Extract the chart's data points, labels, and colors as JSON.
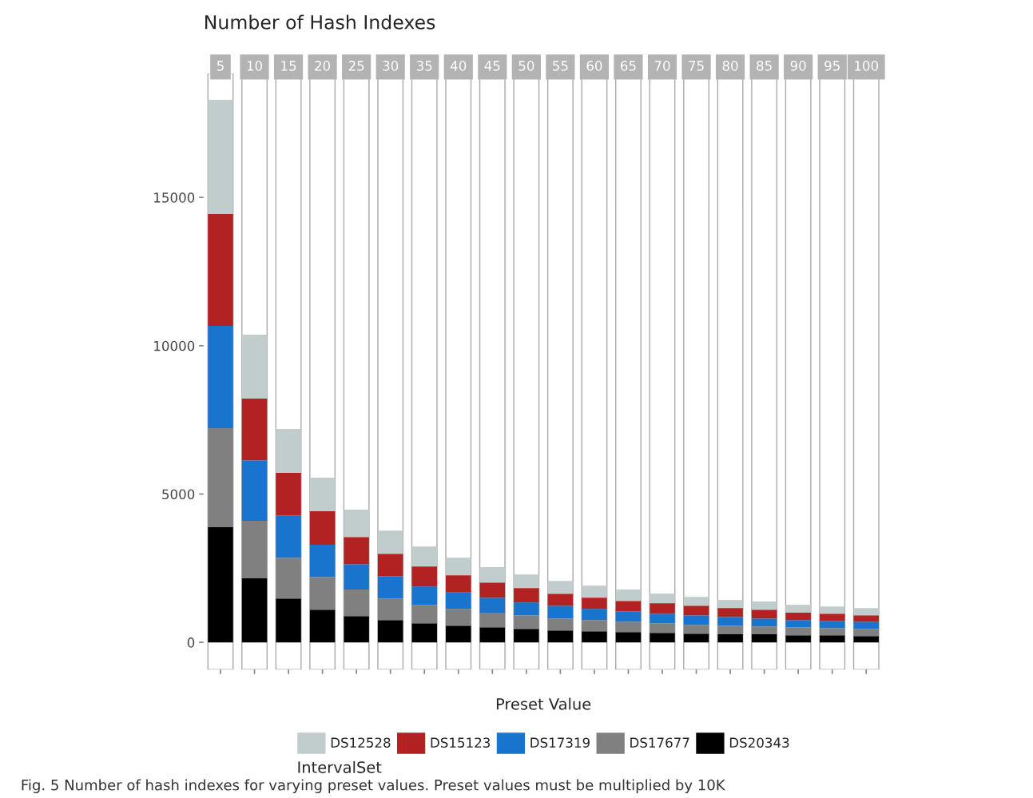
{
  "chart_data": {
    "type": "bar",
    "stacked": true,
    "title": "Number of Hash Indexes",
    "xlabel": "Preset Value",
    "legend_title": "IntervalSet",
    "legend": "bottom",
    "grid": false,
    "categories": [
      "5",
      "10",
      "15",
      "20",
      "25",
      "30",
      "35",
      "40",
      "45",
      "50",
      "55",
      "60",
      "65",
      "70",
      "75",
      "80",
      "85",
      "90",
      "95",
      "100"
    ],
    "series": [
      {
        "name": "DS20343",
        "color": "#000000",
        "values": [
          3880,
          2155,
          1481,
          1104,
          889,
          754,
          646,
          566,
          512,
          458,
          404,
          377,
          350,
          323,
          296,
          270,
          270,
          242,
          242,
          215
        ]
      },
      {
        "name": "DS17677",
        "color": "#808080",
        "values": [
          3340,
          1940,
          1374,
          1104,
          889,
          727,
          620,
          565,
          485,
          458,
          404,
          377,
          350,
          323,
          296,
          296,
          269,
          270,
          243,
          243
        ]
      },
      {
        "name": "DS17319",
        "color": "#1874cd",
        "values": [
          3450,
          2045,
          1427,
          1078,
          861,
          754,
          619,
          566,
          511,
          431,
          431,
          377,
          350,
          324,
          324,
          296,
          269,
          242,
          242,
          242
        ]
      },
      {
        "name": "DS15123",
        "color": "#b22222",
        "values": [
          3770,
          2075,
          1428,
          1131,
          916,
          754,
          674,
          565,
          512,
          484,
          404,
          377,
          350,
          350,
          323,
          296,
          296,
          243,
          243,
          216
        ]
      },
      {
        "name": "DS12528",
        "color": "#c1cdcd",
        "values": [
          3850,
          2155,
          1481,
          1131,
          916,
          781,
          673,
          593,
          512,
          458,
          431,
          404,
          378,
          323,
          296,
          269,
          270,
          269,
          242,
          242
        ]
      }
    ],
    "ylim": [
      -916,
      19180
    ],
    "yticks": [
      0,
      5000,
      10000,
      15000
    ],
    "annotations": [
      "Fig. 5 Number of hash indexes for varying preset values. Preset values must be multiplied by 10K"
    ]
  }
}
